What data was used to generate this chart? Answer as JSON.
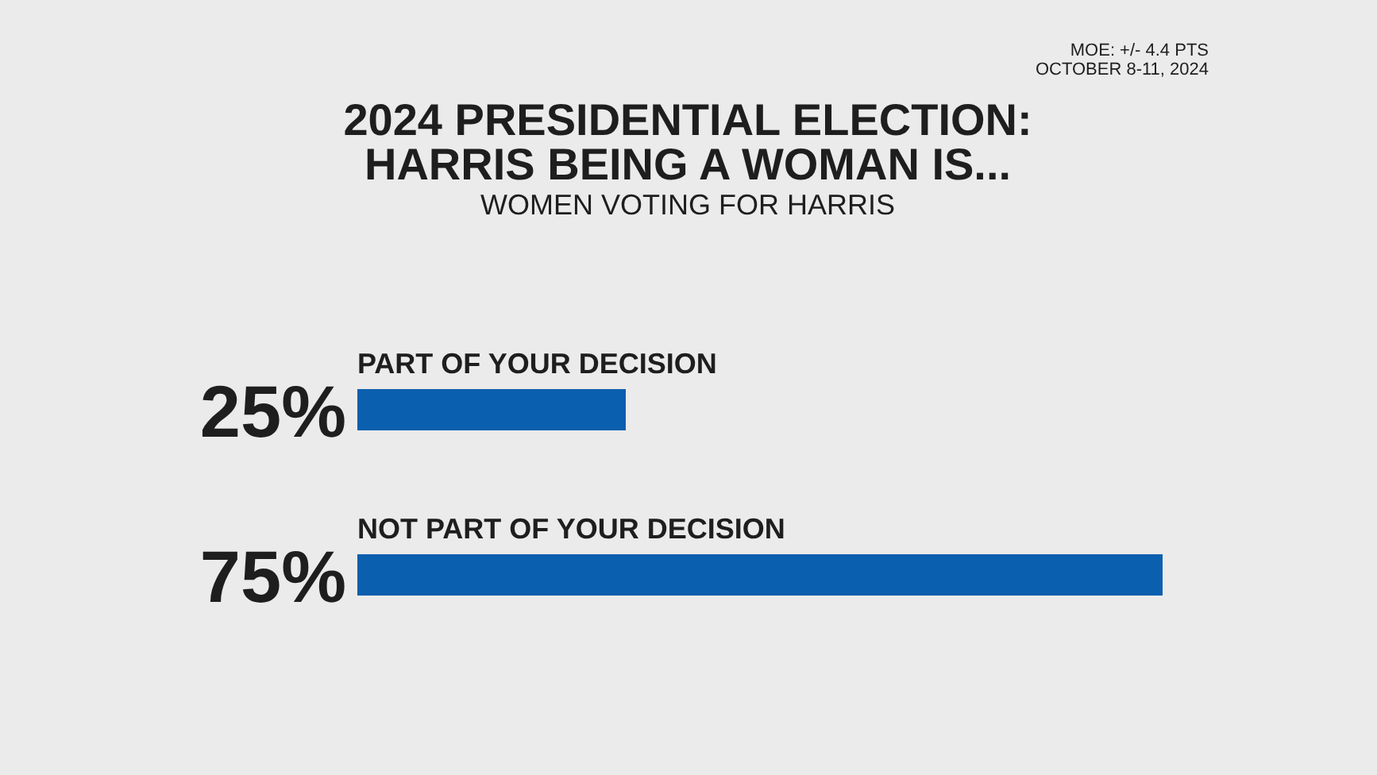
{
  "chart_data": {
    "type": "bar",
    "orientation": "horizontal",
    "title": "2024 PRESIDENTIAL ELECTION: HARRIS BEING A WOMAN IS...",
    "subtitle": "WOMEN VOTING FOR HARRIS",
    "categories": [
      "PART OF YOUR DECISION",
      "NOT PART OF YOUR DECISION"
    ],
    "values": [
      25,
      75
    ],
    "value_labels": [
      "25%",
      "75%"
    ],
    "color": "#0a5fae",
    "annotations": [
      "MOE: +/- 4.4 PTS",
      "OCTOBER 8-11, 2024"
    ]
  }
}
